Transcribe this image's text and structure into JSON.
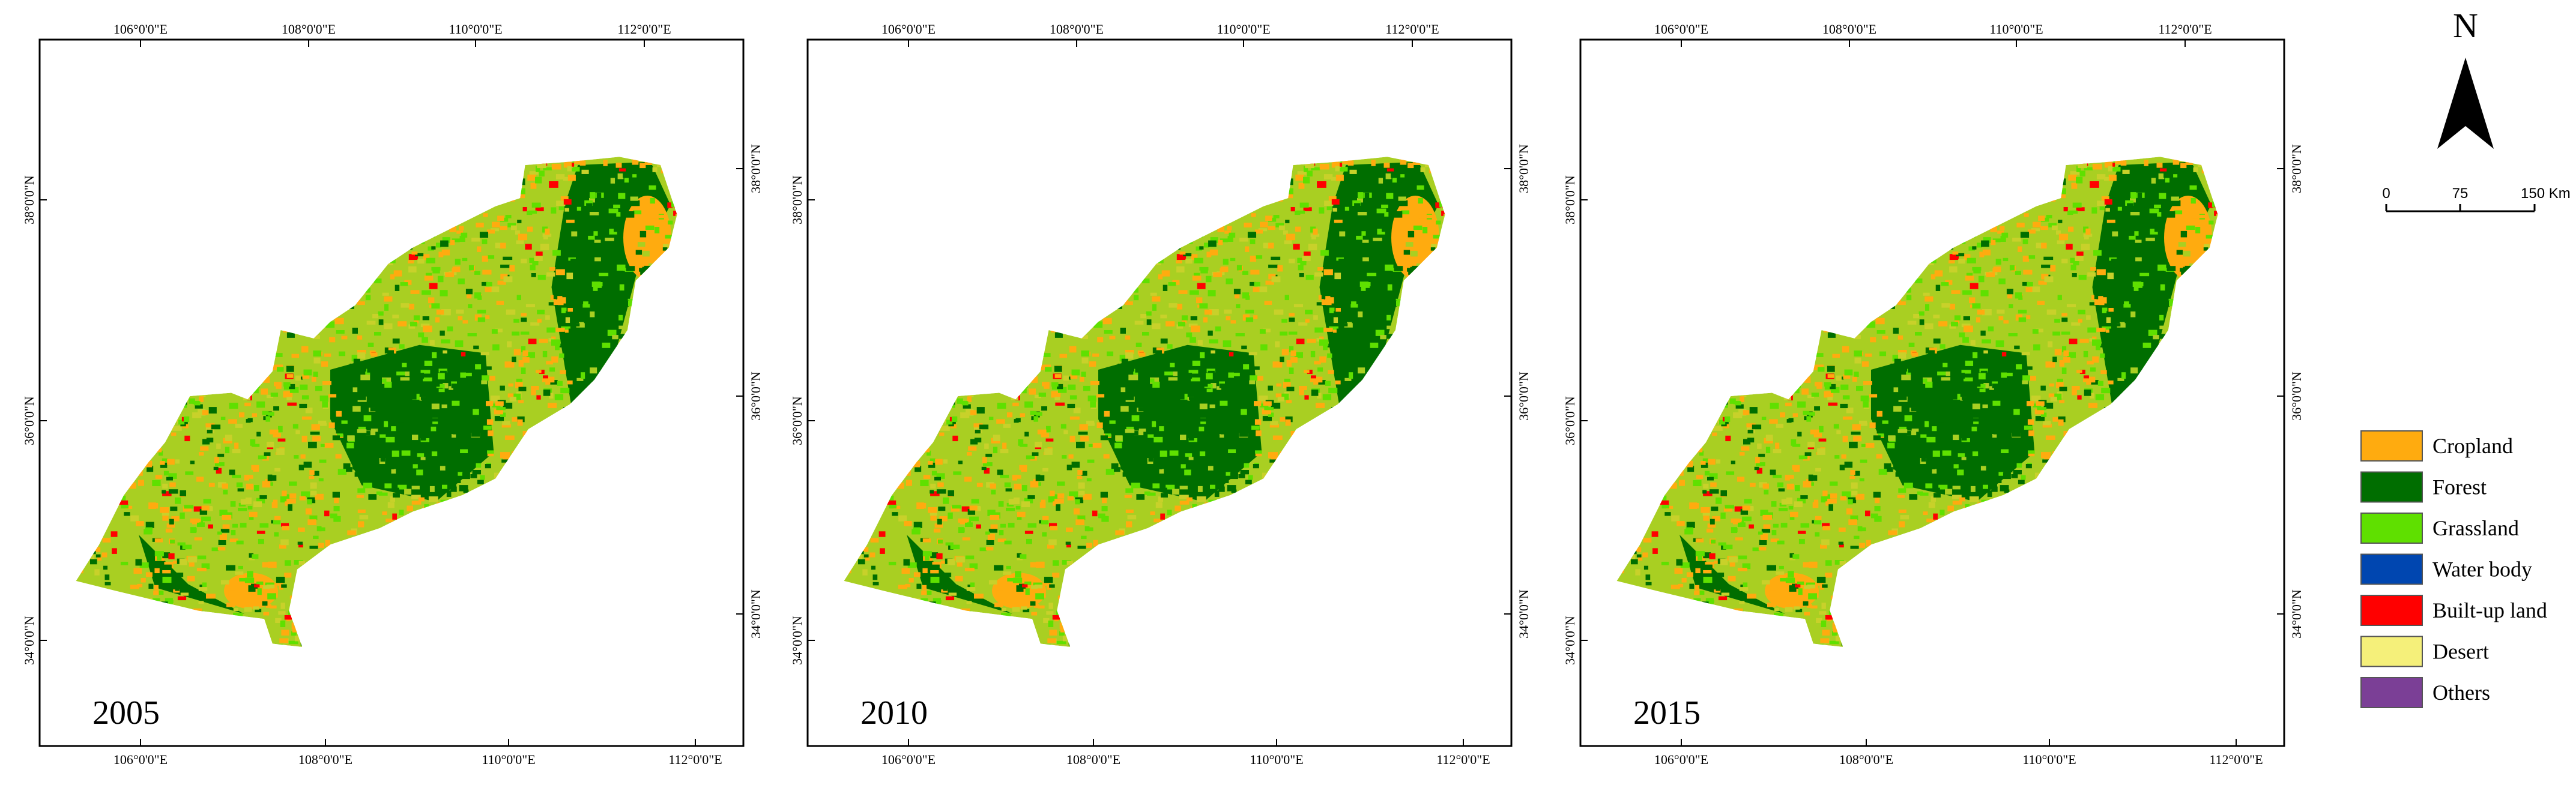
{
  "panels": [
    {
      "year": "2005"
    },
    {
      "year": "2010"
    },
    {
      "year": "2015"
    }
  ],
  "graticule": {
    "lon_labels": [
      "106°0'0\"E",
      "108°0'0\"E",
      "110°0'0\"E",
      "112°0'0\"E"
    ],
    "lat_labels": [
      "38°0'0\"N",
      "36°0'0\"N",
      "34°0'0\"N"
    ]
  },
  "north_arrow": {
    "label": "N"
  },
  "scale_bar": {
    "labels": [
      "0",
      "75",
      "150 Km"
    ]
  },
  "legend": {
    "items": [
      {
        "label": "Cropland",
        "color": "#ffab0f"
      },
      {
        "label": "Forest",
        "color": "#006e00"
      },
      {
        "label": "Grassland",
        "color": "#5fe000"
      },
      {
        "label": "Water body",
        "color": "#0046b0"
      },
      {
        "label": "Built-up land",
        "color": "#ff0000"
      },
      {
        "label": "Desert",
        "color": "#f5f07a"
      },
      {
        "label": "Others",
        "color": "#7b3f96"
      }
    ]
  }
}
